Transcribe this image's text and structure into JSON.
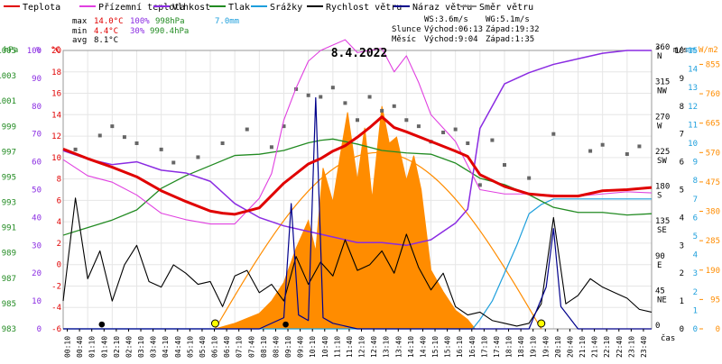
{
  "chart_data": {
    "type": "line",
    "title": "8.4.2022",
    "time_label": "čas",
    "legend": [
      {
        "name": "Teplota",
        "color": "#e00000"
      },
      {
        "name": "Přízemní teplota",
        "color": "#e040e0"
      },
      {
        "name": "Vlhkost",
        "color": "#8a2be2"
      },
      {
        "name": "Tlak",
        "color": "#228b22"
      },
      {
        "name": "Srážky",
        "color": "#1e9fdc"
      },
      {
        "name": "Rychlost větru",
        "color": "#000000"
      },
      {
        "name": "Náraz větru",
        "color": "#00008b"
      },
      {
        "name": "Směr větru",
        "color": "#888888"
      }
    ],
    "stats": {
      "max": {
        "label": "max",
        "temp": "14.0°C",
        "hum": "100%",
        "press": "998hPa",
        "rain": "7.0mm"
      },
      "min": {
        "label": "min",
        "temp": "4.4°C",
        "hum": "30%",
        "press": "990.4hPa"
      },
      "avg": {
        "label": "avg",
        "temp": "8.1°C"
      },
      "ws": "WS:3.6m/s",
      "wg": "WG:5.1m/s",
      "sun": {
        "label": "Slunce",
        "rise": "Východ:06:13",
        "set": "Západ:19:32"
      },
      "moon": {
        "label": "Měsíc",
        "rise": "Východ:9:04",
        "set": "Západ:1:35"
      }
    },
    "axes_left": {
      "hpa": {
        "label": "hPa",
        "color": "#228b22",
        "ticks": [
          "1005",
          "1003",
          "1001",
          "999",
          "997",
          "995",
          "993",
          "991",
          "989",
          "987",
          "985",
          "983"
        ]
      },
      "pct": {
        "label": "%",
        "color": "#8a2be2",
        "ticks": [
          "100",
          "90",
          "80",
          "70",
          "60",
          "50",
          "40",
          "30",
          "20",
          "10",
          "0"
        ]
      },
      "temp": {
        "label": "°C",
        "color": "#e00000",
        "ticks": [
          "20",
          "18",
          "16",
          "14",
          "12",
          "10",
          "8",
          "6",
          "4",
          "2",
          "0",
          "-2",
          "-4",
          "-6"
        ]
      }
    },
    "axes_right": {
      "dir": {
        "label": "°",
        "ticks": [
          "360\nN",
          "315\nNW",
          "270\nW",
          "225\nSW",
          "180\nS",
          "135\nSE",
          "90\nE",
          "45\nNE",
          "0"
        ]
      },
      "ms": {
        "label": "m/s",
        "ticks": [
          "10",
          "9",
          "8",
          "7",
          "6",
          "5",
          "4",
          "3",
          "2",
          "1",
          "0"
        ]
      },
      "mm": {
        "label": "mm",
        "color": "#1e9fdc",
        "ticks": [
          "15",
          "14",
          "13",
          "12",
          "11",
          "10",
          "9",
          "8",
          "7",
          "6",
          "5",
          "4",
          "3",
          "2",
          "1",
          "0"
        ]
      },
      "wm2": {
        "label": "W/m2",
        "color": "#ff8c00",
        "ticks": [
          "855",
          "760",
          "665",
          "570",
          "475",
          "380",
          "285",
          "190",
          "95",
          "0"
        ]
      }
    },
    "x_ticks": [
      "00:10",
      "00:40",
      "01:10",
      "01:40",
      "02:10",
      "02:40",
      "03:10",
      "03:40",
      "04:10",
      "04:40",
      "05:10",
      "05:40",
      "06:10",
      "06:40",
      "07:10",
      "07:40",
      "08:10",
      "08:40",
      "09:10",
      "09:40",
      "10:10",
      "10:40",
      "11:10",
      "11:40",
      "12:10",
      "12:40",
      "13:10",
      "13:40",
      "14:10",
      "14:40",
      "15:10",
      "15:40",
      "16:10",
      "16:40",
      "17:10",
      "17:40",
      "18:10",
      "18:40",
      "19:10",
      "19:40",
      "20:10",
      "20:40",
      "21:10",
      "21:40",
      "22:10",
      "22:40",
      "23:10",
      "23:40"
    ],
    "x_range_h": [
      0,
      24
    ],
    "series": {
      "temperature_C": {
        "x": [
          0,
          1,
          2,
          3,
          4,
          5,
          6,
          6.5,
          7,
          8,
          9,
          10,
          10.5,
          11,
          11.5,
          12,
          12.5,
          13,
          13.5,
          14,
          15,
          16,
          16.5,
          17,
          18,
          19,
          20,
          21,
          22,
          23,
          24
        ],
        "y": [
          10.8,
          9.9,
          9.1,
          8.2,
          6.9,
          5.9,
          5.0,
          4.8,
          4.7,
          5.3,
          7.6,
          9.4,
          9.9,
          10.6,
          11.1,
          11.9,
          12.8,
          13.8,
          12.8,
          12.4,
          11.5,
          10.6,
          10.1,
          8.4,
          7.3,
          6.6,
          6.4,
          6.4,
          6.9,
          7.0,
          7.2
        ]
      },
      "ground_temp_C": {
        "x": [
          0,
          1,
          2,
          3,
          4,
          5,
          6,
          7,
          8,
          8.5,
          9,
          9.5,
          10,
          10.5,
          11,
          11.5,
          12,
          12.5,
          13,
          13.5,
          14,
          14.5,
          15,
          16,
          17,
          18,
          19,
          20,
          21,
          22,
          23,
          24
        ],
        "y": [
          9.8,
          8.3,
          7.7,
          6.5,
          4.8,
          4.2,
          3.8,
          3.8,
          6.2,
          8.5,
          13.5,
          16.5,
          19.0,
          20.0,
          20.5,
          21.0,
          19.8,
          20.0,
          20.2,
          18.0,
          19.5,
          17.0,
          14.0,
          11.5,
          7.0,
          6.6,
          6.6,
          6.5,
          6.4,
          6.6,
          6.8,
          6.7
        ]
      },
      "humidity_pct": {
        "x": [
          0,
          1,
          2,
          3,
          4,
          5,
          6,
          7,
          8,
          9,
          10,
          11,
          12,
          13,
          14,
          15,
          16,
          16.5,
          17,
          18,
          19,
          20,
          21,
          22,
          23,
          24
        ],
        "y": [
          64,
          61,
          59,
          60,
          57,
          56,
          53,
          45,
          40,
          37,
          35,
          33,
          31,
          31,
          30,
          32,
          38,
          43,
          72,
          88,
          92,
          95,
          97,
          99,
          100,
          100
        ]
      },
      "pressure_hPa": {
        "x": [
          0,
          1,
          2,
          3,
          4,
          5,
          6,
          7,
          8,
          9,
          10,
          10.5,
          11,
          12,
          13,
          14,
          15,
          16,
          17,
          18,
          19,
          20,
          21,
          22,
          23,
          24
        ],
        "y": [
          990.4,
          991.0,
          991.6,
          992.4,
          994.1,
          995.1,
          995.9,
          996.7,
          996.8,
          997.1,
          997.7,
          997.9,
          998.0,
          997.6,
          997.1,
          996.9,
          996.8,
          996.1,
          994.9,
          994.4,
          993.6,
          992.6,
          992.2,
          992.2,
          992.0,
          992.1
        ]
      },
      "rain_mm": {
        "x": [
          0,
          16.7,
          17,
          17.5,
          18,
          18.5,
          19,
          19.5,
          20,
          24
        ],
        "y": [
          0,
          0,
          0.5,
          1.5,
          3.0,
          4.5,
          6.2,
          6.7,
          7.0,
          7.0
        ]
      },
      "wind_speed_ms": {
        "x": [
          0,
          0.5,
          1,
          1.5,
          2,
          2.5,
          3,
          3.5,
          4,
          4.5,
          5,
          5.5,
          6,
          6.5,
          7,
          7.5,
          8,
          8.5,
          9,
          9.5,
          10,
          10.5,
          11,
          11.5,
          12,
          12.5,
          13,
          13.5,
          14,
          14.5,
          15,
          15.5,
          16,
          16.5,
          17,
          17.5,
          18,
          18.5,
          19,
          19.5,
          20,
          20.5,
          21,
          21.5,
          22,
          22.5,
          23,
          23.5,
          24
        ],
        "y": [
          1.0,
          4.7,
          1.8,
          2.8,
          1.0,
          2.3,
          3.0,
          1.7,
          1.5,
          2.3,
          2.0,
          1.6,
          1.7,
          0.8,
          1.9,
          2.1,
          1.3,
          1.6,
          1.0,
          2.6,
          1.6,
          2.4,
          1.9,
          3.2,
          2.1,
          2.3,
          2.8,
          2.0,
          3.4,
          2.2,
          1.4,
          2.0,
          0.8,
          0.5,
          0.6,
          0.3,
          0.2,
          0.1,
          0.2,
          0.9,
          4.0,
          0.9,
          1.2,
          1.8,
          1.5,
          1.3,
          1.1,
          0.7,
          0.6
        ]
      },
      "wind_gust_ms": {
        "x": [
          0,
          1,
          2,
          3,
          4,
          5,
          6,
          7,
          8,
          9,
          9.3,
          9.6,
          10,
          10.3,
          10.6,
          11,
          12,
          13,
          14,
          15,
          16,
          17,
          18,
          19,
          19.7,
          20,
          20.3,
          21,
          22,
          23,
          24
        ],
        "y": [
          0,
          0,
          0,
          0,
          0,
          0,
          0,
          0,
          0,
          0.4,
          4.5,
          0.5,
          0.3,
          8.3,
          0.4,
          0.2,
          0,
          0,
          0,
          0,
          0,
          0,
          0,
          0,
          1.5,
          3.6,
          0.8,
          0,
          0,
          0,
          0
        ]
      },
      "wind_dir_deg": {
        "x": [
          0.5,
          1.5,
          2.0,
          2.5,
          3.0,
          4.0,
          4.5,
          5.5,
          6.5,
          7.5,
          8.5,
          9.0,
          9.5,
          10.0,
          10.5,
          11.0,
          11.5,
          12.0,
          12.5,
          13.0,
          13.5,
          14.0,
          14.5,
          15.0,
          15.5,
          16.0,
          16.5,
          17.0,
          17.5,
          18.0,
          19.0,
          20.0,
          21.5,
          22.0,
          23.0,
          23.5
        ],
        "y": [
          232,
          250,
          262,
          248,
          240,
          232,
          215,
          222,
          240,
          258,
          235,
          262,
          310,
          302,
          300,
          312,
          292,
          270,
          300,
          282,
          288,
          270,
          262,
          242,
          254,
          258,
          240,
          186,
          244,
          212,
          195,
          252,
          230,
          238,
          226,
          236
        ]
      },
      "solar_Wm2": {
        "x": [
          6.2,
          7,
          8,
          8.5,
          9,
          9.5,
          10,
          10.3,
          10.6,
          11,
          11.3,
          11.6,
          12,
          12.3,
          12.6,
          13,
          13.3,
          13.6,
          14,
          14.3,
          14.6,
          15,
          15.5,
          16,
          16.5,
          16.8
        ],
        "y": [
          0,
          18,
          50,
          90,
          150,
          260,
          350,
          250,
          520,
          410,
          560,
          700,
          480,
          650,
          420,
          720,
          600,
          620,
          480,
          560,
          450,
          190,
          120,
          60,
          30,
          0
        ]
      },
      "solar_theory_Wm2": {
        "start_h": 6.2,
        "end_h": 19.5,
        "peak": 570
      }
    },
    "markers": {
      "sunrise_h": 6.2,
      "sunset_h": 19.5,
      "moonrise_h": 9.1,
      "moonset_h": 1.6,
      "moon_symbol": "●"
    }
  }
}
